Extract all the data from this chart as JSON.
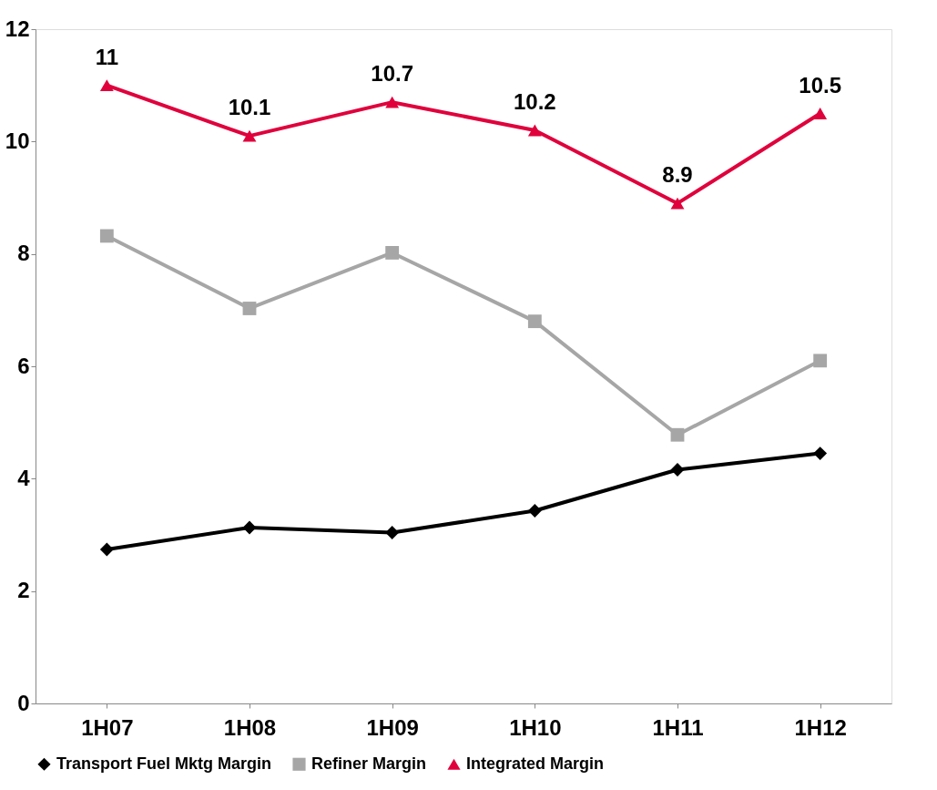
{
  "chart_data": {
    "type": "line",
    "categories": [
      "1H07",
      "1H08",
      "1H09",
      "1H10",
      "1H11",
      "1H12"
    ],
    "series": [
      {
        "name": "Transport Fuel Mktg Margin",
        "color": "#000000",
        "marker": "diamond",
        "values": [
          2.74,
          3.13,
          3.04,
          3.43,
          4.16,
          4.45
        ]
      },
      {
        "name": "Refiner Margin",
        "color": "#a6a6a6",
        "marker": "square",
        "values": [
          8.32,
          7.03,
          8.02,
          6.8,
          4.78,
          6.1
        ]
      },
      {
        "name": "Integrated Margin",
        "color": "#e0003c",
        "marker": "triangle",
        "values": [
          11,
          10.1,
          10.7,
          10.2,
          8.9,
          10.5
        ],
        "value_labels": [
          "11",
          "10.1",
          "10.7",
          "10.2",
          "8.9",
          "10.5"
        ]
      }
    ],
    "ylim": [
      0,
      12
    ],
    "yticks": [
      0,
      2,
      4,
      6,
      8,
      10,
      12
    ],
    "grid": false,
    "legend": "bottom",
    "line_style": "solid"
  }
}
